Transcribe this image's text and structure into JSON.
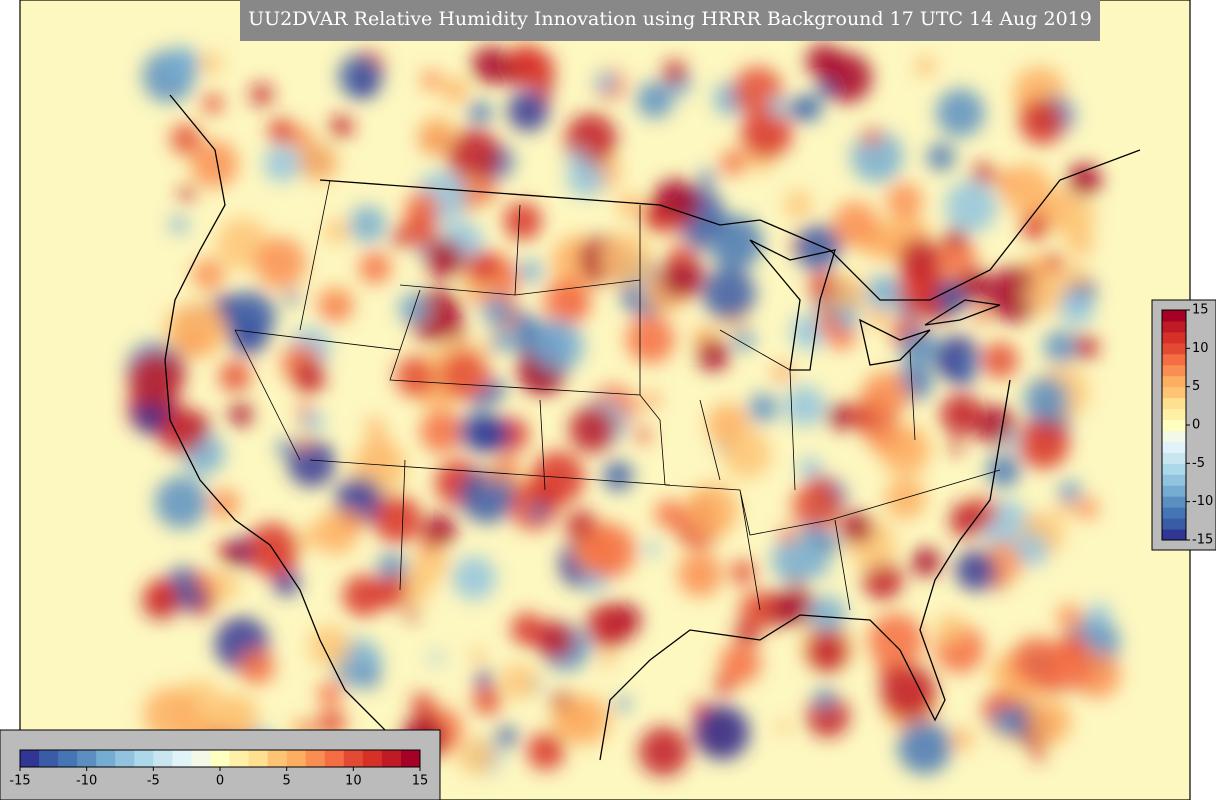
{
  "header": {
    "title": "UU2DVAR Relative Humidity Innovation using HRRR Background 17 UTC 14 Aug 2019"
  },
  "colormap": [
    "#313695",
    "#3a5ba6",
    "#4575b4",
    "#5b8fc2",
    "#74add1",
    "#91c3de",
    "#abd9e9",
    "#c9e6f0",
    "#e0f3f8",
    "#f3f9e6",
    "#ffffbf",
    "#fff0a8",
    "#fee090",
    "#fdc476",
    "#fdae61",
    "#f98e52",
    "#f46d43",
    "#e34a33",
    "#d73027",
    "#c01a27",
    "#a50026"
  ],
  "colorbar_bottom": {
    "range": [
      -15,
      15
    ],
    "ticks": [
      -15,
      -10,
      -5,
      0,
      5,
      10,
      15
    ]
  },
  "colorbar_right": {
    "range": [
      -15,
      15
    ],
    "ticks": [
      -15,
      -10,
      -5,
      0,
      5,
      10,
      15
    ]
  }
}
